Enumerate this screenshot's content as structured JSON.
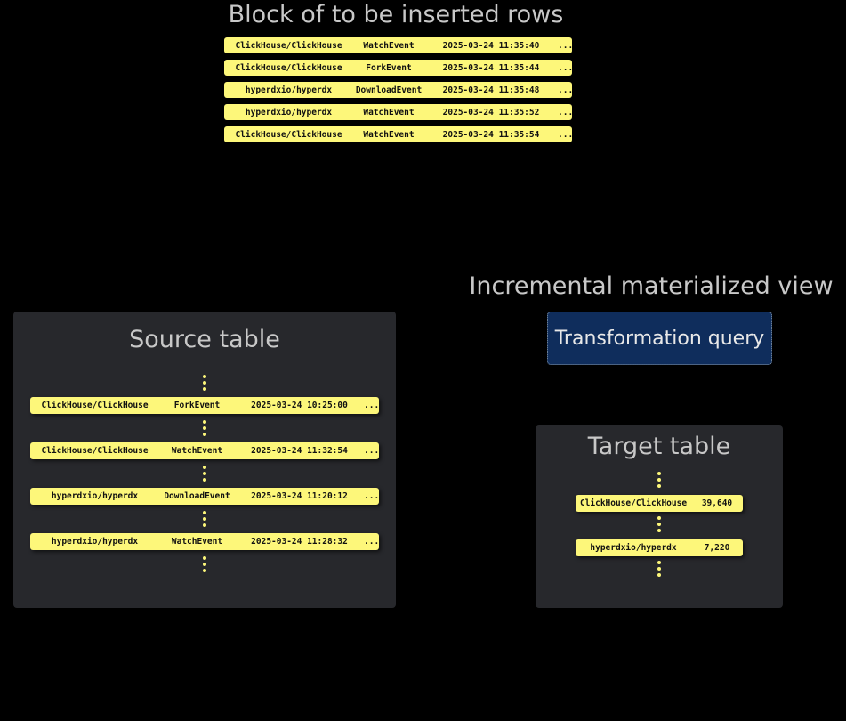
{
  "block": {
    "title": "Block of to be inserted rows",
    "rows": [
      [
        "ClickHouse/ClickHouse",
        "WatchEvent",
        "2025-03-24 11:35:40",
        "..."
      ],
      [
        "ClickHouse/ClickHouse",
        "ForkEvent",
        "2025-03-24 11:35:44",
        "..."
      ],
      [
        "hyperdxio/hyperdx",
        "DownloadEvent",
        "2025-03-24 11:35:48",
        "..."
      ],
      [
        "hyperdxio/hyperdx",
        "WatchEvent",
        "2025-03-24 11:35:52",
        "..."
      ],
      [
        "ClickHouse/ClickHouse",
        "WatchEvent",
        "2025-03-24 11:35:54",
        "..."
      ]
    ]
  },
  "source": {
    "title": "Source table",
    "rows": [
      [
        "ClickHouse/ClickHouse",
        "ForkEvent",
        "2025-03-24 10:25:00",
        "..."
      ],
      [
        "ClickHouse/ClickHouse",
        "WatchEvent",
        "2025-03-24 11:32:54",
        "..."
      ],
      [
        "hyperdxio/hyperdx",
        "DownloadEvent",
        "2025-03-24 11:20:12",
        "..."
      ],
      [
        "hyperdxio/hyperdx",
        "WatchEvent",
        "2025-03-24 11:28:32",
        "..."
      ]
    ]
  },
  "view": {
    "title": "Incremental materialized view",
    "query": "Transformation query"
  },
  "target": {
    "title": "Target table",
    "rows": [
      [
        "ClickHouse/ClickHouse",
        "39,640"
      ],
      [
        "hyperdxio/hyperdx",
        "7,220"
      ]
    ]
  },
  "colors": {
    "row": "#fdf77a",
    "panel": "#27282c",
    "query": "#0f2d5c"
  }
}
